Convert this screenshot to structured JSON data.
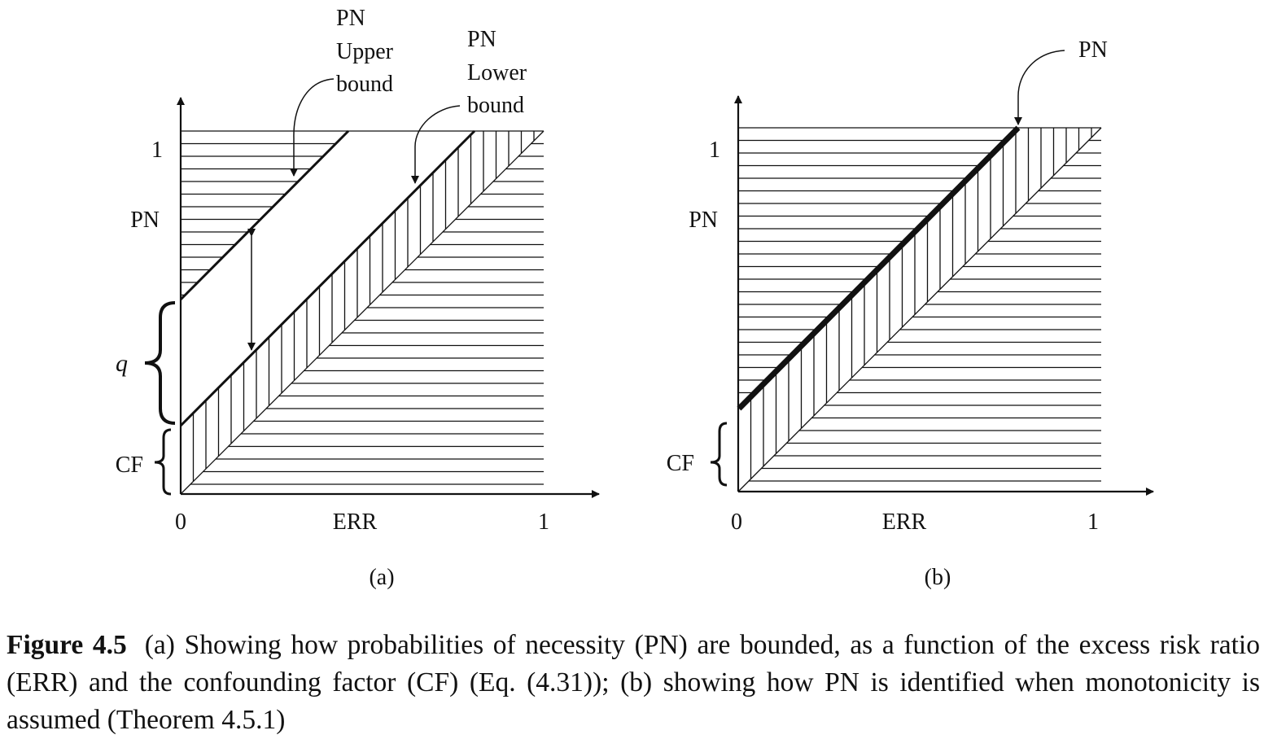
{
  "panel_a": {
    "y_tick_1": "1",
    "y_label": "PN",
    "q_label": "q",
    "cf_label": "CF",
    "x_tick_0": "0",
    "x_label": "ERR",
    "x_tick_1": "1",
    "sub_label": "(a)",
    "callout_upper": [
      "PN",
      "Upper",
      "bound"
    ],
    "callout_lower": [
      "PN",
      "Lower",
      "bound"
    ]
  },
  "panel_b": {
    "y_tick_1": "1",
    "y_label": "PN",
    "cf_label": "CF",
    "x_tick_0": "0",
    "x_label": "ERR",
    "x_tick_1": "1",
    "sub_label": "(b)",
    "callout": "PN"
  },
  "caption": {
    "label": "Figure 4.5",
    "text": "(a) Showing how probabilities of necessity (PN) are bounded, as a function of the excess risk ratio (ERR) and the confounding factor (CF) (Eq. (4.31)); (b) showing how PN is identified when monotonicity is assumed (Theorem 4.5.1)"
  }
}
